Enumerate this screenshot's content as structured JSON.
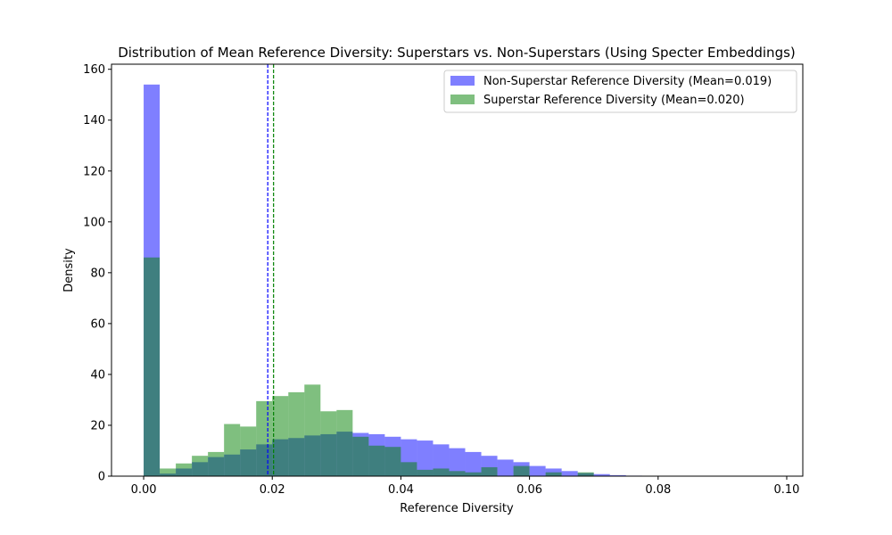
{
  "chart_data": {
    "type": "bar",
    "title": "Distribution of Mean Reference Diversity: Superstars vs. Non-Superstars (Using Specter Embeddings)",
    "xlabel": "Reference Diversity",
    "ylabel": "Density",
    "xlim": [
      -0.005,
      0.1025
    ],
    "ylim": [
      0,
      162
    ],
    "x_ticks": [
      0.0,
      0.02,
      0.04,
      0.06,
      0.08,
      0.1
    ],
    "x_tick_labels": [
      "0.00",
      "0.02",
      "0.04",
      "0.06",
      "0.08",
      "0.10"
    ],
    "y_ticks": [
      0,
      20,
      40,
      60,
      80,
      100,
      120,
      140,
      160
    ],
    "y_tick_labels": [
      "0",
      "20",
      "40",
      "60",
      "80",
      "100",
      "120",
      "140",
      "160"
    ],
    "bin_start": 0.0,
    "bin_width": 0.0025,
    "legend_position": "top-right",
    "series": [
      {
        "name": "Non-Superstar Reference Diversity (Mean=0.019)",
        "color": "#0000ff",
        "alpha": 0.5,
        "mean": 0.0193,
        "values": [
          154,
          1,
          3,
          5.5,
          7.5,
          8.5,
          10.5,
          12.5,
          14.5,
          15,
          16,
          16.5,
          17.5,
          17,
          16.5,
          15.5,
          14.5,
          14,
          12.5,
          11,
          9.5,
          8,
          6.5,
          5.5,
          4,
          3,
          2,
          1.2,
          0.8,
          0.4,
          0.2,
          0.1,
          0.1,
          0.05,
          0.05,
          0.05,
          0.02,
          0.02,
          0.02,
          0.02
        ]
      },
      {
        "name": "Superstar Reference Diversity (Mean=0.020)",
        "color": "#008000",
        "alpha": 0.5,
        "mean": 0.0202,
        "values": [
          86,
          3,
          5,
          8,
          9.5,
          20.5,
          19.5,
          29.5,
          31.5,
          33,
          36,
          25.5,
          26,
          15.5,
          12,
          11.5,
          5.5,
          2.5,
          3,
          2,
          1.5,
          3.5,
          0,
          4,
          0,
          1.5,
          0,
          1.5,
          0,
          0,
          0,
          0,
          0,
          0,
          0,
          0,
          0,
          0,
          0,
          0
        ]
      }
    ]
  }
}
